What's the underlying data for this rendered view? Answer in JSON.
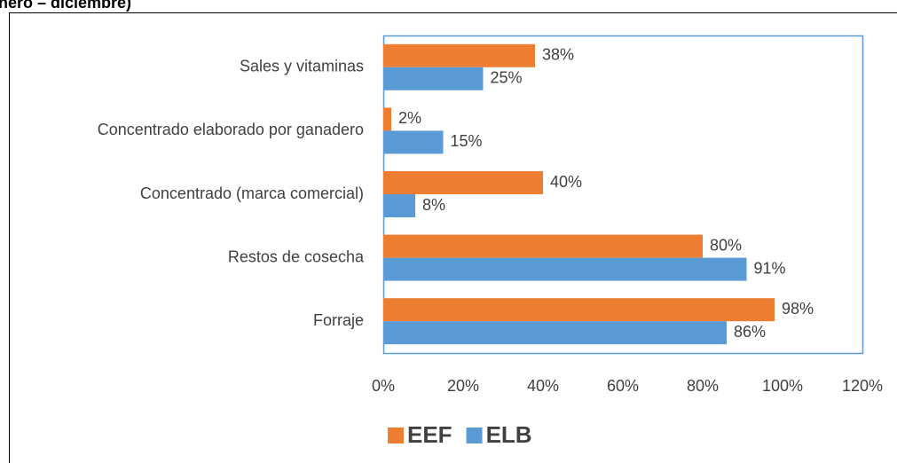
{
  "chart_data": {
    "type": "bar",
    "orientation": "horizontal",
    "title": "nero – diciembre)",
    "categories": [
      "Sales y vitaminas",
      "Concentrado elaborado por ganadero",
      "Concentrado (marca comercial)",
      "Restos de cosecha",
      "Forraje"
    ],
    "series": [
      {
        "name": "EEF",
        "color": "#ed7d31",
        "values": [
          38,
          2,
          40,
          80,
          98
        ],
        "value_labels": [
          "38%",
          "2%",
          "40%",
          "80%",
          "98%"
        ]
      },
      {
        "name": "ELB",
        "color": "#5b9bd5",
        "values": [
          25,
          15,
          8,
          91,
          86
        ],
        "value_labels": [
          "25%",
          "15%",
          "8%",
          "91%",
          "86%"
        ]
      }
    ],
    "xlim": [
      0,
      120
    ],
    "xticks": [
      {
        "value": 0,
        "label": "0%"
      },
      {
        "value": 20,
        "label": "20%"
      },
      {
        "value": 40,
        "label": "40%"
      },
      {
        "value": 60,
        "label": "60%"
      },
      {
        "value": 80,
        "label": "80%"
      },
      {
        "value": 100,
        "label": "100%"
      },
      {
        "value": 120,
        "label": "120%"
      }
    ],
    "legend": "bottom",
    "grid": false
  }
}
